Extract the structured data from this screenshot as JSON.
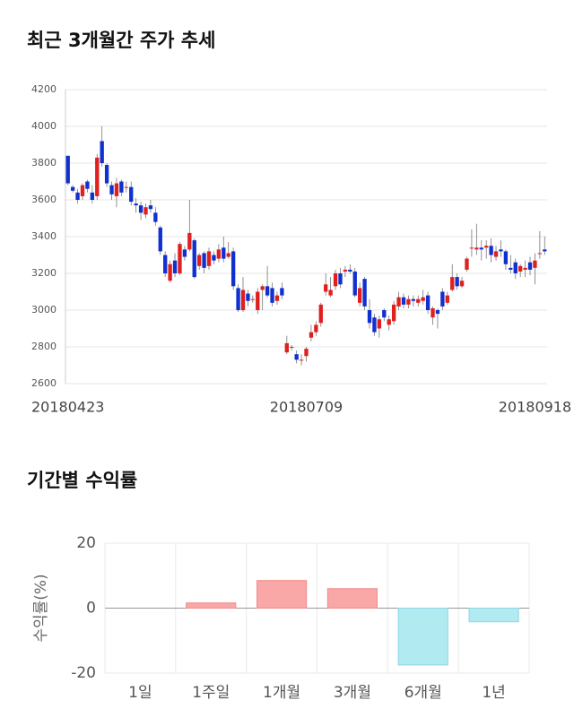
{
  "chart_data": [
    {
      "type": "candlestick",
      "title": "최근 3개월간 주가 추세",
      "categories": [
        "20180423",
        null,
        null,
        null,
        null,
        null,
        null,
        null,
        null,
        null,
        null,
        null,
        null,
        null,
        null,
        null,
        null,
        null,
        null,
        null,
        null,
        null,
        null,
        null,
        null,
        null,
        null,
        null,
        null,
        null,
        null,
        null,
        null,
        null,
        null,
        null,
        null,
        null,
        null,
        null,
        null,
        null,
        null,
        null,
        null,
        null,
        null,
        null,
        null,
        "20180709",
        null,
        null,
        null,
        null,
        null,
        null,
        null,
        null,
        null,
        null,
        null,
        null,
        null,
        null,
        null,
        null,
        null,
        null,
        null,
        null,
        null,
        null,
        null,
        null,
        null,
        null,
        null,
        null,
        null,
        null,
        null,
        null,
        null,
        null,
        null,
        null,
        null,
        null,
        null,
        null,
        null,
        null,
        null,
        null,
        null,
        null,
        "20180918",
        null,
        null
      ],
      "open": [
        3840,
        3670,
        3640,
        3620,
        3700,
        3640,
        3620,
        3920,
        3790,
        3680,
        3620,
        3700,
        3670,
        3670,
        3580,
        3570,
        3520,
        3570,
        3530,
        3450,
        3300,
        3160,
        3270,
        3200,
        3330,
        3330,
        3380,
        3240,
        3310,
        3240,
        3300,
        3280,
        3340,
        3290,
        3320,
        3120,
        3000,
        3090,
        3060,
        3000,
        3110,
        3130,
        3120,
        3050,
        3120,
        2770,
        2800,
        2760,
        2730,
        2750,
        2850,
        2880,
        2930,
        3100,
        3080,
        3130,
        3200,
        3210,
        3220,
        3210,
        3040,
        3170,
        3000,
        2960,
        2900,
        3000,
        2920,
        2940,
        3020,
        3070,
        3030,
        3060,
        3040,
        3050,
        3080,
        2960,
        3000,
        3100,
        3040,
        3110,
        3180,
        3130,
        3220,
        3340,
        3330,
        3340,
        3340,
        3350,
        3290,
        3330,
        3320,
        3230,
        3260,
        3210,
        3220,
        3260,
        3230,
        3310,
        3330
      ],
      "high": [
        3840,
        3680,
        3660,
        3690,
        3710,
        3680,
        3850,
        4000,
        3800,
        3700,
        3720,
        3710,
        3700,
        3700,
        3610,
        3590,
        3580,
        3600,
        3560,
        3460,
        3320,
        3270,
        3310,
        3370,
        3350,
        3600,
        3390,
        3310,
        3320,
        3340,
        3320,
        3360,
        3400,
        3370,
        3340,
        3140,
        3180,
        3110,
        3080,
        3120,
        3140,
        3240,
        3150,
        3100,
        3150,
        2860,
        2810,
        2780,
        2760,
        2800,
        2920,
        2940,
        3040,
        3200,
        3180,
        3220,
        3230,
        3240,
        3250,
        3230,
        3150,
        3180,
        3060,
        2980,
        2970,
        3010,
        2970,
        3050,
        3100,
        3090,
        3080,
        3080,
        3080,
        3110,
        3100,
        3020,
        3010,
        3120,
        3100,
        3250,
        3200,
        3180,
        3290,
        3440,
        3470,
        3380,
        3380,
        3390,
        3350,
        3380,
        3330,
        3300,
        3280,
        3250,
        3270,
        3290,
        3310,
        3430,
        3400
      ],
      "low": [
        3680,
        3640,
        3580,
        3600,
        3640,
        3580,
        3600,
        3780,
        3670,
        3600,
        3560,
        3620,
        3640,
        3570,
        3530,
        3490,
        3500,
        3530,
        3460,
        3300,
        3180,
        3150,
        3180,
        3190,
        3270,
        3320,
        3170,
        3220,
        3200,
        3220,
        3250,
        3260,
        3260,
        3280,
        3110,
        2990,
        2990,
        3020,
        3040,
        2980,
        3000,
        3070,
        3020,
        3030,
        3060,
        2760,
        2780,
        2710,
        2700,
        2720,
        2830,
        2860,
        2910,
        3080,
        3070,
        3110,
        3120,
        3180,
        3200,
        3070,
        3020,
        3000,
        2900,
        2860,
        2850,
        2940,
        2890,
        2920,
        3000,
        3010,
        3010,
        3020,
        3020,
        3030,
        2980,
        2920,
        2900,
        3000,
        3030,
        3100,
        3110,
        3120,
        3210,
        3290,
        3300,
        3270,
        3280,
        3260,
        3270,
        3290,
        3220,
        3200,
        3170,
        3180,
        3180,
        3190,
        3140,
        3280,
        3300
      ],
      "close": [
        3690,
        3650,
        3600,
        3680,
        3660,
        3600,
        3830,
        3800,
        3690,
        3630,
        3690,
        3640,
        3670,
        3590,
        3570,
        3530,
        3560,
        3550,
        3480,
        3320,
        3200,
        3250,
        3200,
        3360,
        3290,
        3420,
        3180,
        3300,
        3230,
        3320,
        3270,
        3330,
        3280,
        3310,
        3130,
        3000,
        3110,
        3050,
        3060,
        3100,
        3130,
        3080,
        3040,
        3080,
        3080,
        2820,
        2800,
        2730,
        2730,
        2790,
        2880,
        2920,
        3030,
        3140,
        3110,
        3200,
        3140,
        3220,
        3210,
        3080,
        3120,
        3020,
        2930,
        2880,
        2950,
        2960,
        2950,
        3030,
        3070,
        3030,
        3060,
        3050,
        3060,
        3070,
        3000,
        3010,
        2980,
        3020,
        3080,
        3180,
        3130,
        3160,
        3280,
        3340,
        3340,
        3330,
        3350,
        3300,
        3320,
        3320,
        3250,
        3220,
        3200,
        3240,
        3230,
        3220,
        3270,
        3310,
        3320
      ],
      "up_color": "#e0201e",
      "down_color": "#1030d0",
      "ylim": [
        2600,
        4200
      ],
      "yticks": [
        2600,
        2800,
        3000,
        3200,
        3400,
        3600,
        3800,
        4000,
        4200
      ],
      "grid": true
    },
    {
      "type": "bar",
      "title": "기간별 수익률",
      "y_label": "수익률(%)",
      "categories": [
        "1일",
        "1주일",
        "1개월",
        "3개월",
        "6개월",
        "1년"
      ],
      "values": [
        null,
        1.6,
        8.5,
        6.0,
        -17.5,
        -4.2
      ],
      "positive_color": "#f9a7a7",
      "negative_color": "#b2eaf2",
      "ylim": [
        -20,
        20
      ],
      "yticks": [
        -20,
        0,
        20
      ],
      "grid": true
    }
  ]
}
